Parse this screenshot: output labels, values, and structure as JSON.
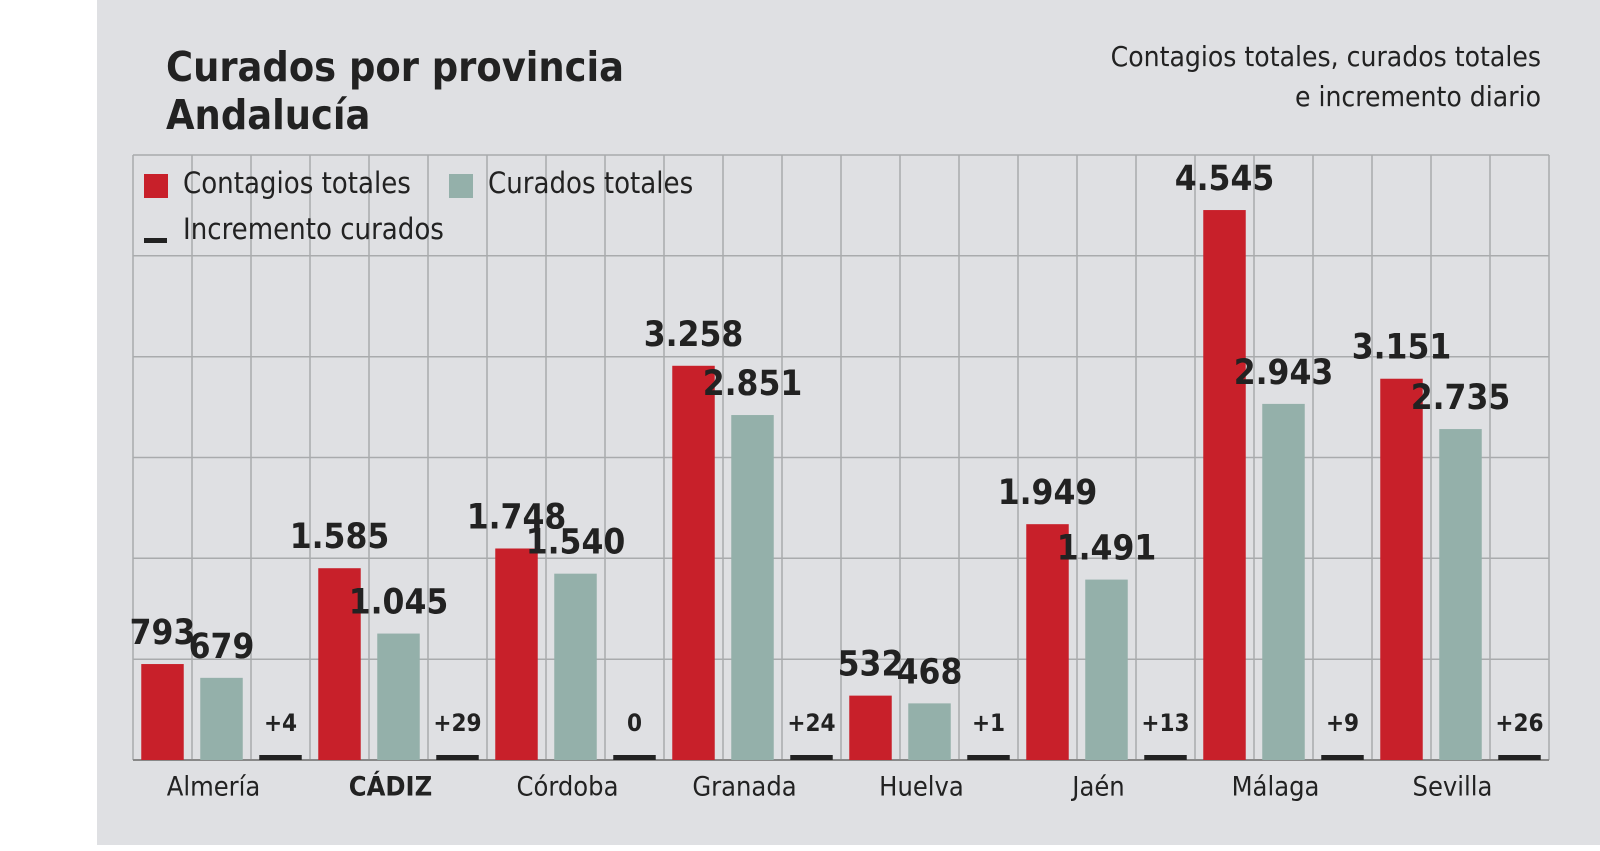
{
  "chart_data": {
    "type": "bar",
    "title": [
      "Curados por provincia",
      "Andalucía"
    ],
    "subtitle": [
      "Contagios totales, curados totales",
      "e incremento diario"
    ],
    "categories": [
      "Almería",
      "CÁDIZ",
      "Córdoba",
      "Granada",
      "Huelva",
      "Jaén",
      "Málaga",
      "Sevilla"
    ],
    "highlight_index": 1,
    "series": [
      {
        "name": "Contagios totales",
        "color": "#c8202a",
        "values": [
          793,
          1585,
          1748,
          3258,
          532,
          1949,
          4545,
          3151
        ],
        "value_labels": [
          "793",
          "1.585",
          "1.748",
          "3.258",
          "532",
          "1.949",
          "4.545",
          "3.151"
        ]
      },
      {
        "name": "Curados totales",
        "color": "#94b0aa",
        "values": [
          679,
          1045,
          1540,
          2851,
          468,
          1491,
          2943,
          2735
        ],
        "value_labels": [
          "679",
          "1.045",
          "1.540",
          "2.851",
          "468",
          "1.491",
          "2.943",
          "2.735"
        ]
      },
      {
        "name": "Incremento curados",
        "color": "#222222",
        "style": "dash",
        "values": [
          4,
          29,
          0,
          24,
          1,
          13,
          9,
          26
        ],
        "value_labels": [
          "+4",
          "+29",
          "0",
          "+24",
          "+1",
          "+13",
          "+9",
          "+26"
        ]
      }
    ],
    "ylim": [
      0,
      5000
    ],
    "yticks": [
      0,
      833,
      1667,
      2500,
      3333,
      4167,
      5000
    ],
    "show_tick_labels": false,
    "grid": true
  }
}
